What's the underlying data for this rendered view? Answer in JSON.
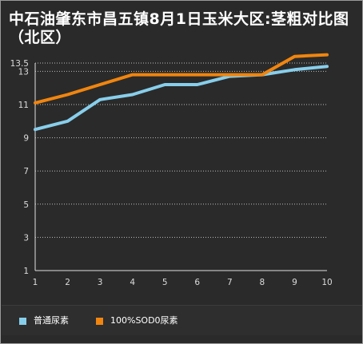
{
  "chart_data": {
    "type": "line",
    "title": "中石油肇东市昌五镇8月1日玉米大区:茎粗对比图（北区）",
    "x": [
      1,
      2,
      3,
      4,
      5,
      6,
      7,
      8,
      9,
      10
    ],
    "ylim": [
      1,
      13.5
    ],
    "yticks": [
      1,
      3,
      5,
      7,
      9,
      11,
      13,
      13.5
    ],
    "ytick_labels": [
      "1",
      "3",
      "5",
      "7",
      "9",
      "11",
      "13",
      "13.5"
    ],
    "grid": true,
    "legend_position": "bottom-left",
    "series": [
      {
        "name": "普通尿素",
        "color": "#87ceeb",
        "values": [
          9.5,
          10.0,
          11.3,
          11.6,
          12.2,
          12.2,
          12.7,
          12.8,
          13.1,
          13.3
        ]
      },
      {
        "name": "100%SOD0尿素",
        "color": "#f0850f",
        "values": [
          11.1,
          11.6,
          12.2,
          12.8,
          12.8,
          12.8,
          12.8,
          12.8,
          13.9,
          14.0
        ]
      }
    ]
  }
}
